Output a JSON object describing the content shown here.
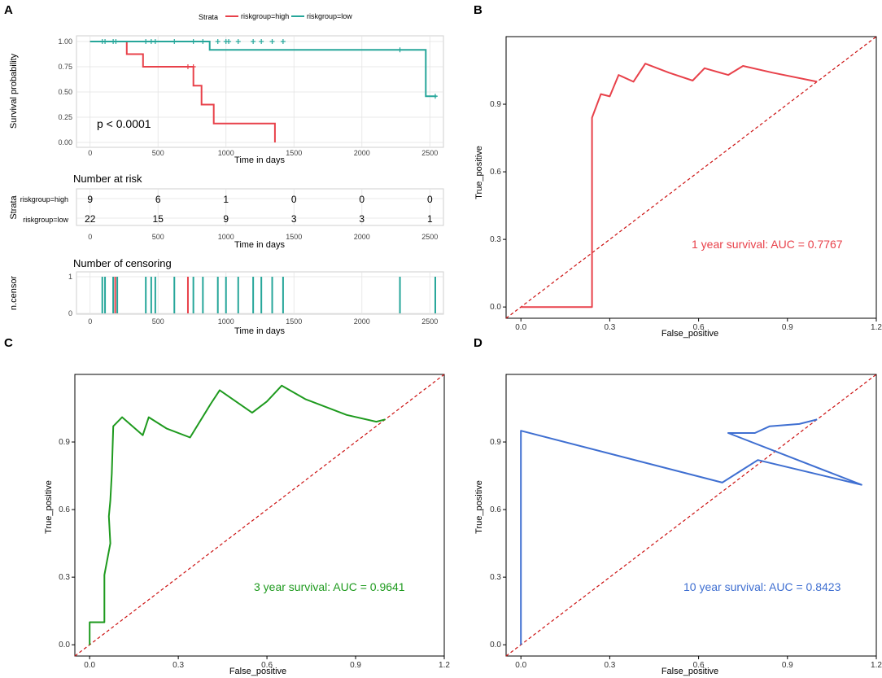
{
  "colors": {
    "high": "#E8414A",
    "low": "#26A69A",
    "roc1": "#E8414A",
    "roc3": "#1E9A1E",
    "roc10": "#3F6FD1",
    "diag": "#CC1111"
  },
  "panel_labels": [
    "A",
    "B",
    "C",
    "D"
  ],
  "legend": {
    "title": "Strata",
    "entries": [
      "riskgroup=high",
      "riskgroup=low"
    ]
  },
  "chart_data": [
    {
      "type": "line",
      "subtype": "kaplan-meier",
      "panel": "A",
      "xlabel": "Time in days",
      "ylabel": "Survival probability",
      "xlim": [
        -100,
        2600
      ],
      "ylim": [
        0,
        1
      ],
      "xticks": [
        "0",
        "500",
        "1000",
        "1500",
        "2000",
        "2500"
      ],
      "yticks": [
        "0.00",
        "0.25",
        "0.50",
        "0.75",
        "1.00"
      ],
      "annotation": "p < 0.0001",
      "series": [
        {
          "name": "riskgroup=high",
          "color": "high",
          "steps": [
            [
              0,
              1
            ],
            [
              270,
              1
            ],
            [
              270,
              0.875
            ],
            [
              390,
              0.875
            ],
            [
              390,
              0.75
            ],
            [
              760,
              0.75
            ],
            [
              760,
              0.5625
            ],
            [
              820,
              0.5625
            ],
            [
              820,
              0.375
            ],
            [
              910,
              0.375
            ],
            [
              910,
              0.1875
            ],
            [
              1360,
              0.1875
            ],
            [
              1360,
              0
            ]
          ],
          "censors": [
            [
              720,
              0.75
            ],
            [
              760,
              0.75
            ]
          ]
        },
        {
          "name": "riskgroup=low",
          "color": "low",
          "steps": [
            [
              0,
              1
            ],
            [
              880,
              1
            ],
            [
              880,
              0.917
            ],
            [
              2470,
              0.917
            ],
            [
              2470,
              0.458
            ],
            [
              2550,
              0.458
            ]
          ],
          "censors": [
            [
              90,
              1
            ],
            [
              110,
              1
            ],
            [
              170,
              1
            ],
            [
              190,
              1
            ],
            [
              410,
              1
            ],
            [
              450,
              1
            ],
            [
              480,
              1
            ],
            [
              620,
              1
            ],
            [
              760,
              1
            ],
            [
              830,
              1
            ],
            [
              940,
              1
            ],
            [
              1000,
              1
            ],
            [
              1020,
              1
            ],
            [
              1090,
              1
            ],
            [
              1200,
              1
            ],
            [
              1260,
              1
            ],
            [
              1340,
              1
            ],
            [
              1420,
              1
            ],
            [
              2280,
              0.917
            ],
            [
              2540,
              0.458
            ]
          ]
        }
      ]
    },
    {
      "type": "table",
      "title": "Number at risk",
      "ylabel": "Strata",
      "xlabel": "Time in days",
      "xticks": [
        "0",
        "500",
        "1000",
        "1500",
        "2000",
        "2500"
      ],
      "rows": [
        {
          "label": "riskgroup=high",
          "color": "high",
          "values": [
            "9",
            "6",
            "1",
            "0",
            "0",
            "0"
          ]
        },
        {
          "label": "riskgroup=low",
          "color": "low",
          "values": [
            "22",
            "15",
            "9",
            "3",
            "3",
            "1"
          ]
        }
      ]
    },
    {
      "type": "bar",
      "title": "Number of censoring",
      "ylabel": "n.censor",
      "xlabel": "Time in days",
      "xticks": [
        "0",
        "500",
        "1000",
        "1500",
        "2000",
        "2500"
      ],
      "yticks": [
        "0",
        "1"
      ],
      "xlim": [
        -100,
        2600
      ],
      "events": [
        {
          "x": 90,
          "group": "low"
        },
        {
          "x": 110,
          "group": "low"
        },
        {
          "x": 170,
          "group": "low"
        },
        {
          "x": 185,
          "group": "high"
        },
        {
          "x": 200,
          "group": "low"
        },
        {
          "x": 410,
          "group": "low"
        },
        {
          "x": 450,
          "group": "low"
        },
        {
          "x": 480,
          "group": "low"
        },
        {
          "x": 620,
          "group": "low"
        },
        {
          "x": 720,
          "group": "high"
        },
        {
          "x": 760,
          "group": "low"
        },
        {
          "x": 830,
          "group": "low"
        },
        {
          "x": 940,
          "group": "low"
        },
        {
          "x": 1000,
          "group": "low"
        },
        {
          "x": 1090,
          "group": "low"
        },
        {
          "x": 1200,
          "group": "low"
        },
        {
          "x": 1260,
          "group": "low"
        },
        {
          "x": 1340,
          "group": "low"
        },
        {
          "x": 1420,
          "group": "low"
        },
        {
          "x": 2280,
          "group": "low"
        },
        {
          "x": 2540,
          "group": "low"
        }
      ]
    },
    {
      "type": "line",
      "subtype": "roc",
      "panel": "B",
      "xlabel": "False_positive",
      "ylabel": "True_positive",
      "xlim": [
        -0.05,
        1.2
      ],
      "ylim": [
        -0.05,
        1.2
      ],
      "xticks": [
        "0.0",
        "0.3",
        "0.6",
        "0.9",
        "1.2"
      ],
      "yticks": [
        "0.0",
        "0.3",
        "0.6",
        "0.9"
      ],
      "annotation": "1 year survival: AUC = 0.7767",
      "color": "roc1",
      "points": [
        [
          0,
          0
        ],
        [
          0.24,
          0
        ],
        [
          0.24,
          0.84
        ],
        [
          0.27,
          0.945
        ],
        [
          0.3,
          0.935
        ],
        [
          0.33,
          1.03
        ],
        [
          0.38,
          1.0
        ],
        [
          0.42,
          1.08
        ],
        [
          0.5,
          1.04
        ],
        [
          0.58,
          1.005
        ],
        [
          0.62,
          1.06
        ],
        [
          0.7,
          1.03
        ],
        [
          0.75,
          1.07
        ],
        [
          0.85,
          1.04
        ],
        [
          1.0,
          1.0
        ]
      ]
    },
    {
      "type": "line",
      "subtype": "roc",
      "panel": "C",
      "xlabel": "False_positive",
      "ylabel": "True_positive",
      "xlim": [
        -0.05,
        1.2
      ],
      "ylim": [
        -0.05,
        1.2
      ],
      "xticks": [
        "0.0",
        "0.3",
        "0.6",
        "0.9",
        "1.2"
      ],
      "yticks": [
        "0.0",
        "0.3",
        "0.6",
        "0.9"
      ],
      "annotation": "3 year survival: AUC = 0.9641",
      "color": "roc3",
      "points": [
        [
          0,
          0
        ],
        [
          0,
          0.1
        ],
        [
          0.05,
          0.1
        ],
        [
          0.05,
          0.31
        ],
        [
          0.07,
          0.45
        ],
        [
          0.065,
          0.57
        ],
        [
          0.07,
          0.64
        ],
        [
          0.075,
          0.76
        ],
        [
          0.08,
          0.97
        ],
        [
          0.11,
          1.01
        ],
        [
          0.18,
          0.93
        ],
        [
          0.2,
          1.01
        ],
        [
          0.26,
          0.96
        ],
        [
          0.34,
          0.92
        ],
        [
          0.41,
          1.07
        ],
        [
          0.44,
          1.13
        ],
        [
          0.55,
          1.03
        ],
        [
          0.6,
          1.08
        ],
        [
          0.65,
          1.15
        ],
        [
          0.73,
          1.09
        ],
        [
          0.87,
          1.02
        ],
        [
          0.97,
          0.99
        ],
        [
          1.0,
          1.0
        ]
      ]
    },
    {
      "type": "line",
      "subtype": "roc",
      "panel": "D",
      "xlabel": "False_positive",
      "ylabel": "True_positive",
      "xlim": [
        -0.05,
        1.2
      ],
      "ylim": [
        -0.05,
        1.2
      ],
      "xticks": [
        "0.0",
        "0.3",
        "0.6",
        "0.9",
        "1.2"
      ],
      "yticks": [
        "0.0",
        "0.3",
        "0.6",
        "0.9"
      ],
      "annotation": "10 year survival: AUC = 0.8423",
      "color": "roc10",
      "points": [
        [
          0,
          0
        ],
        [
          0,
          0.95
        ],
        [
          0.68,
          0.72
        ],
        [
          0.74,
          0.77
        ],
        [
          0.8,
          0.82
        ],
        [
          1.15,
          0.71
        ],
        [
          0.7,
          0.94
        ],
        [
          0.79,
          0.94
        ],
        [
          0.84,
          0.97
        ],
        [
          0.94,
          0.98
        ],
        [
          1.0,
          1.0
        ]
      ]
    }
  ]
}
